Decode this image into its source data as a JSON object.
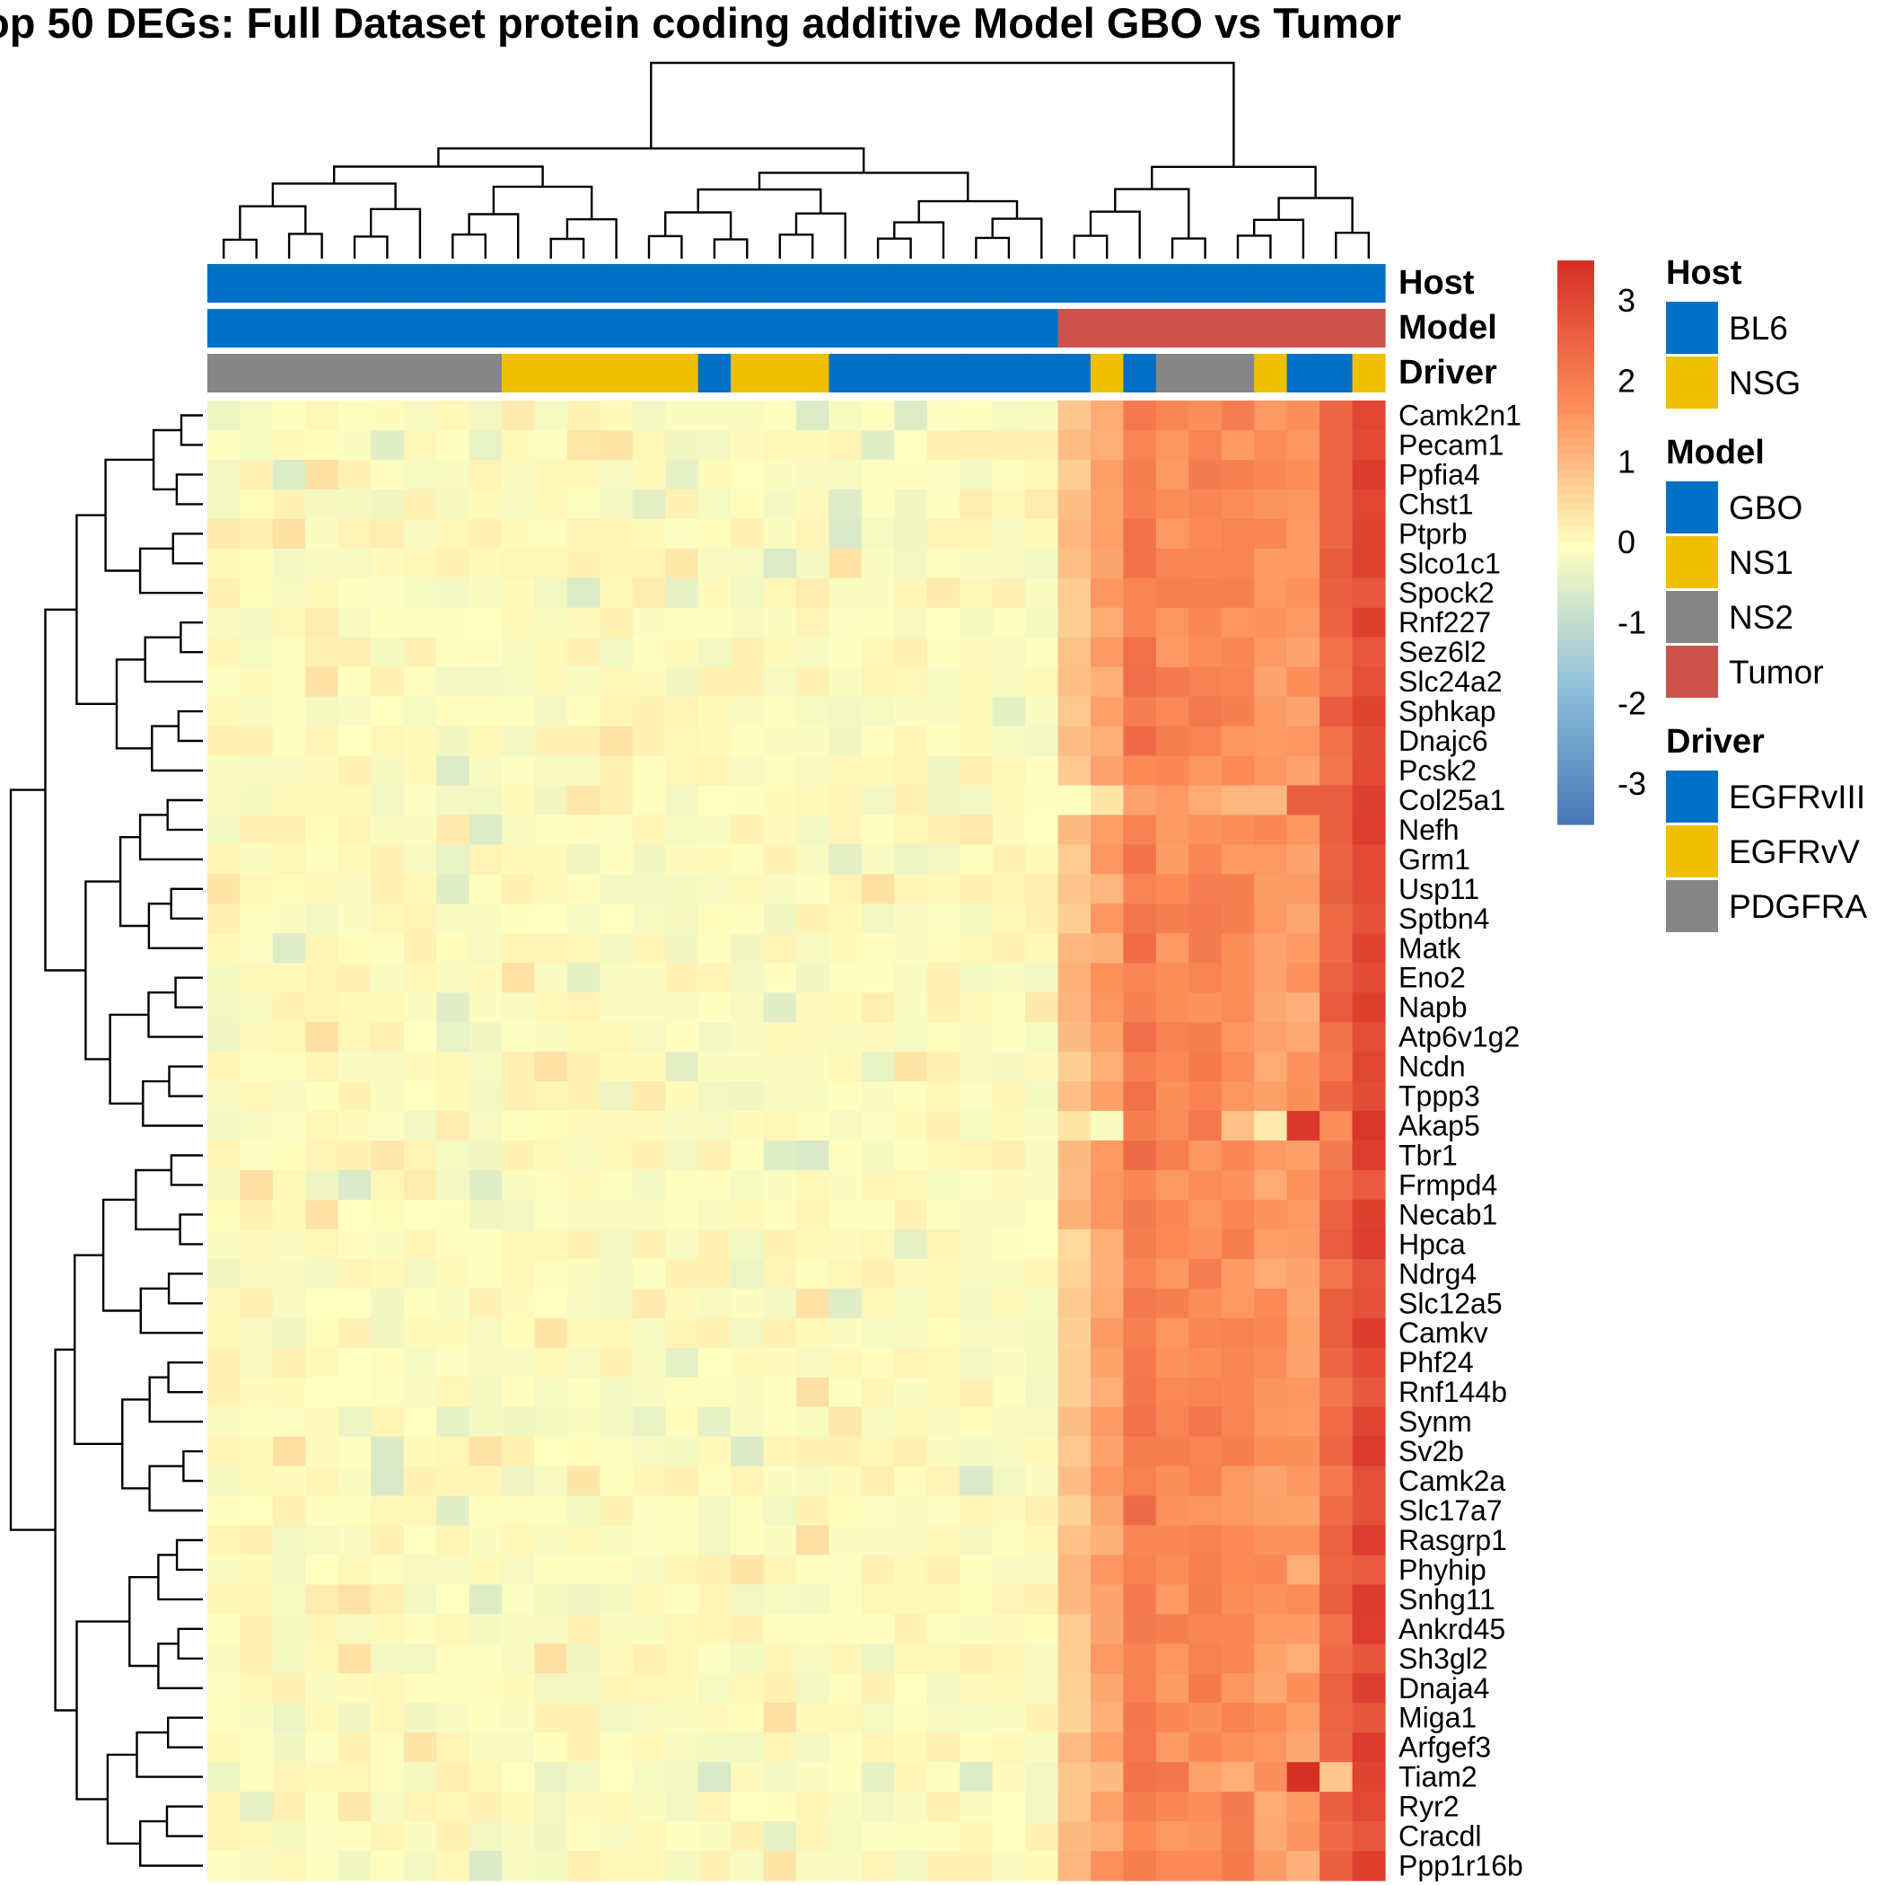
{
  "chart_data": {
    "type": "heatmap",
    "title": "op 50 DEGs: Full Dataset protein coding additive Model GBO vs Tumor",
    "n_columns": 36,
    "rows": [
      "Camk2n1",
      "Pecam1",
      "Ppfia4",
      "Chst1",
      "Ptprb",
      "Slco1c1",
      "Spock2",
      "Rnf227",
      "Sez6l2",
      "Slc24a2",
      "Sphkap",
      "Dnajc6",
      "Pcsk2",
      "Col25a1",
      "Nefh",
      "Grm1",
      "Usp11",
      "Sptbn4",
      "Matk",
      "Eno2",
      "Napb",
      "Atp6v1g2",
      "Ncdn",
      "Tppp3",
      "Akap5",
      "Tbr1",
      "Frmpd4",
      "Necab1",
      "Hpca",
      "Ndrg4",
      "Slc12a5",
      "Camkv",
      "Phf24",
      "Rnf144b",
      "Synm",
      "Sv2b",
      "Camk2a",
      "Slc17a7",
      "Rasgrp1",
      "Phyhip",
      "Snhg11",
      "Ankrd45",
      "Sh3gl2",
      "Dnaja4",
      "Miga1",
      "Arfgef3",
      "Tiam2",
      "Ryr2",
      "Cracdl",
      "Ppp1r16b"
    ],
    "tumor_profile": [
      0.9,
      1.4,
      2.1,
      1.8,
      1.9,
      1.8,
      1.6,
      1.5,
      2.4,
      3.0
    ],
    "tumor_row_overrides": {
      "Col25a1": [
        0.3,
        0.2,
        1.2,
        1.6,
        1.4,
        1.3,
        1.0,
        2.9,
        2.8,
        3.1
      ],
      "Akap5": [
        0.2,
        0.0,
        1.8,
        2.0,
        2.1,
        1.2,
        0.5,
        3.4,
        1.6,
        3.2
      ],
      "Tiam2": [
        0.6,
        0.9,
        2.0,
        2.4,
        1.7,
        1.5,
        1.8,
        3.4,
        0.8,
        3.2
      ]
    },
    "gbo_range": [
      -0.6,
      0.5
    ],
    "color_scale": {
      "min": -3.5,
      "max": 3.5,
      "ticks": [
        3,
        2,
        1,
        0,
        -1,
        -2,
        -3
      ],
      "low_color": "#4575b4",
      "mid_color": "#ffffbf",
      "high_color": "#d73027"
    },
    "annotations": {
      "Host": {
        "values": [
          "BL6",
          "BL6",
          "BL6",
          "BL6",
          "BL6",
          "BL6",
          "BL6",
          "BL6",
          "BL6",
          "BL6",
          "BL6",
          "BL6",
          "BL6",
          "BL6",
          "BL6",
          "BL6",
          "BL6",
          "BL6",
          "BL6",
          "BL6",
          "BL6",
          "BL6",
          "BL6",
          "BL6",
          "BL6",
          "BL6",
          "BL6",
          "BL6",
          "BL6",
          "BL6",
          "BL6",
          "BL6",
          "BL6",
          "BL6",
          "BL6",
          "BL6"
        ]
      },
      "Model": {
        "values": [
          "GBO",
          "GBO",
          "GBO",
          "GBO",
          "GBO",
          "GBO",
          "GBO",
          "GBO",
          "GBO",
          "GBO",
          "GBO",
          "GBO",
          "GBO",
          "GBO",
          "GBO",
          "GBO",
          "GBO",
          "GBO",
          "GBO",
          "GBO",
          "GBO",
          "GBO",
          "GBO",
          "GBO",
          "GBO",
          "GBO",
          "Tumor",
          "Tumor",
          "Tumor",
          "Tumor",
          "Tumor",
          "Tumor",
          "Tumor",
          "Tumor",
          "Tumor",
          "Tumor"
        ]
      },
      "Driver": {
        "values": [
          "PDGFRA",
          "PDGFRA",
          "PDGFRA",
          "PDGFRA",
          "PDGFRA",
          "PDGFRA",
          "PDGFRA",
          "PDGFRA",
          "PDGFRA",
          "EGFRvV",
          "EGFRvV",
          "EGFRvV",
          "EGFRvV",
          "EGFRvV",
          "EGFRvV",
          "EGFRvIII",
          "EGFRvV",
          "EGFRvV",
          "EGFRvV",
          "EGFRvIII",
          "EGFRvIII",
          "EGFRvIII",
          "EGFRvIII",
          "EGFRvIII",
          "EGFRvIII",
          "EGFRvIII",
          "EGFRvIII",
          "EGFRvV",
          "EGFRvIII",
          "PDGFRA",
          "PDGFRA",
          "PDGFRA",
          "EGFRvV",
          "EGFRvIII",
          "EGFRvIII",
          "EGFRvV"
        ]
      }
    },
    "legend": [
      {
        "title": "Host",
        "items": [
          {
            "label": "BL6",
            "color": "#0071c5"
          },
          {
            "label": "NSG",
            "color": "#efc000"
          }
        ]
      },
      {
        "title": "Model",
        "items": [
          {
            "label": "GBO",
            "color": "#0071c5"
          },
          {
            "label": "NS1",
            "color": "#efc000"
          },
          {
            "label": "NS2",
            "color": "#868686"
          },
          {
            "label": "Tumor",
            "color": "#cd534c"
          }
        ]
      },
      {
        "title": "Driver",
        "items": [
          {
            "label": "EGFRvIII",
            "color": "#0071c5"
          },
          {
            "label": "EGFRvV",
            "color": "#efc000"
          },
          {
            "label": "PDGFRA",
            "color": "#868686"
          }
        ]
      }
    ],
    "dendrograms": {
      "column": "clustered",
      "row": "clustered"
    }
  }
}
